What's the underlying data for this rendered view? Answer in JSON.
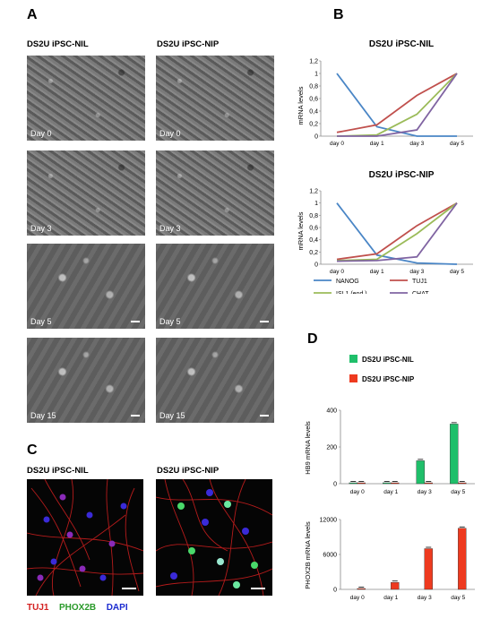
{
  "panels": {
    "a": {
      "letter": "A",
      "col_left": "DS2U iPSC-NIL",
      "col_right": "DS2U iPSC-NIP",
      "days": [
        "Day 0",
        "Day 3",
        "Day 5",
        "Day 15"
      ]
    },
    "b": {
      "letter": "B"
    },
    "c": {
      "letter": "C",
      "col_left": "DS2U iPSC-NIL",
      "col_right": "DS2U iPSC-NIP",
      "markers": [
        {
          "label": "TUJ1",
          "color": "#d42020"
        },
        {
          "label": "PHOX2B",
          "color": "#2a9a2a"
        },
        {
          "label": "DAPI",
          "color": "#1a2ad0"
        }
      ]
    },
    "d": {
      "letter": "D"
    }
  },
  "chart_data": [
    {
      "type": "line",
      "title": "DS2U iPSC-NIL",
      "ylabel": "mRNA levels",
      "categories": [
        "day 0",
        "day 1",
        "day 3",
        "day 5"
      ],
      "ylim": [
        0,
        1.2
      ],
      "yticks": [
        "0",
        "0,2",
        "0,4",
        "0,6",
        "0,8",
        "1",
        "1,2"
      ],
      "series": [
        {
          "name": "NANOG",
          "color": "#4a86c6",
          "values": [
            1.0,
            0.15,
            0.0,
            0.0
          ]
        },
        {
          "name": "TUJ1",
          "color": "#c0504d",
          "values": [
            0.06,
            0.18,
            0.65,
            1.0
          ]
        },
        {
          "name": "ISL1 (end.)",
          "color": "#9bbb59",
          "values": [
            0.0,
            0.02,
            0.35,
            1.0
          ]
        },
        {
          "name": "CHAT",
          "color": "#8064a2",
          "values": [
            0.0,
            0.0,
            0.1,
            1.0
          ]
        }
      ]
    },
    {
      "type": "line",
      "title": "DS2U iPSC-NIP",
      "ylabel": "mRNA levels",
      "categories": [
        "day 0",
        "day 1",
        "day 3",
        "day 5"
      ],
      "ylim": [
        0,
        1.2
      ],
      "yticks": [
        "0",
        "0,2",
        "0,4",
        "0,6",
        "0,8",
        "1",
        "1,2"
      ],
      "series": [
        {
          "name": "NANOG",
          "color": "#4a86c6",
          "values": [
            1.0,
            0.15,
            0.02,
            0.0
          ]
        },
        {
          "name": "TUJ1",
          "color": "#c0504d",
          "values": [
            0.08,
            0.17,
            0.63,
            1.0
          ]
        },
        {
          "name": "ISL1 (end.)",
          "color": "#9bbb59",
          "values": [
            0.06,
            0.08,
            0.5,
            1.0
          ]
        },
        {
          "name": "CHAT",
          "color": "#8064a2",
          "values": [
            0.05,
            0.06,
            0.12,
            1.0
          ]
        }
      ]
    },
    {
      "type": "bar",
      "ylabel": "HB9 mRNA levels",
      "categories": [
        "day 0",
        "day 1",
        "day 3",
        "day 5"
      ],
      "ylim": [
        0,
        400
      ],
      "yticks": [
        "0",
        "200",
        "400"
      ],
      "series": [
        {
          "name": "DS2U iPSC-NIL",
          "color": "#1fbf6a",
          "values": [
            1,
            5,
            125,
            325
          ]
        },
        {
          "name": "DS2U iPSC-NIP",
          "color": "#ee3a1f",
          "values": [
            1,
            3,
            4,
            1
          ]
        }
      ]
    },
    {
      "type": "bar",
      "ylabel": "PHOX2B mRNA levels",
      "categories": [
        "day 0",
        "day 1",
        "day 3",
        "day 5"
      ],
      "ylim": [
        0,
        12000
      ],
      "yticks": [
        "0",
        "6000",
        "12000"
      ],
      "series": [
        {
          "name": "DS2U iPSC-NIL",
          "color": "#1fbf6a",
          "values": [
            0,
            0,
            0,
            0
          ]
        },
        {
          "name": "DS2U iPSC-NIP",
          "color": "#ee3a1f",
          "values": [
            30,
            1200,
            7000,
            10500
          ]
        }
      ]
    }
  ]
}
